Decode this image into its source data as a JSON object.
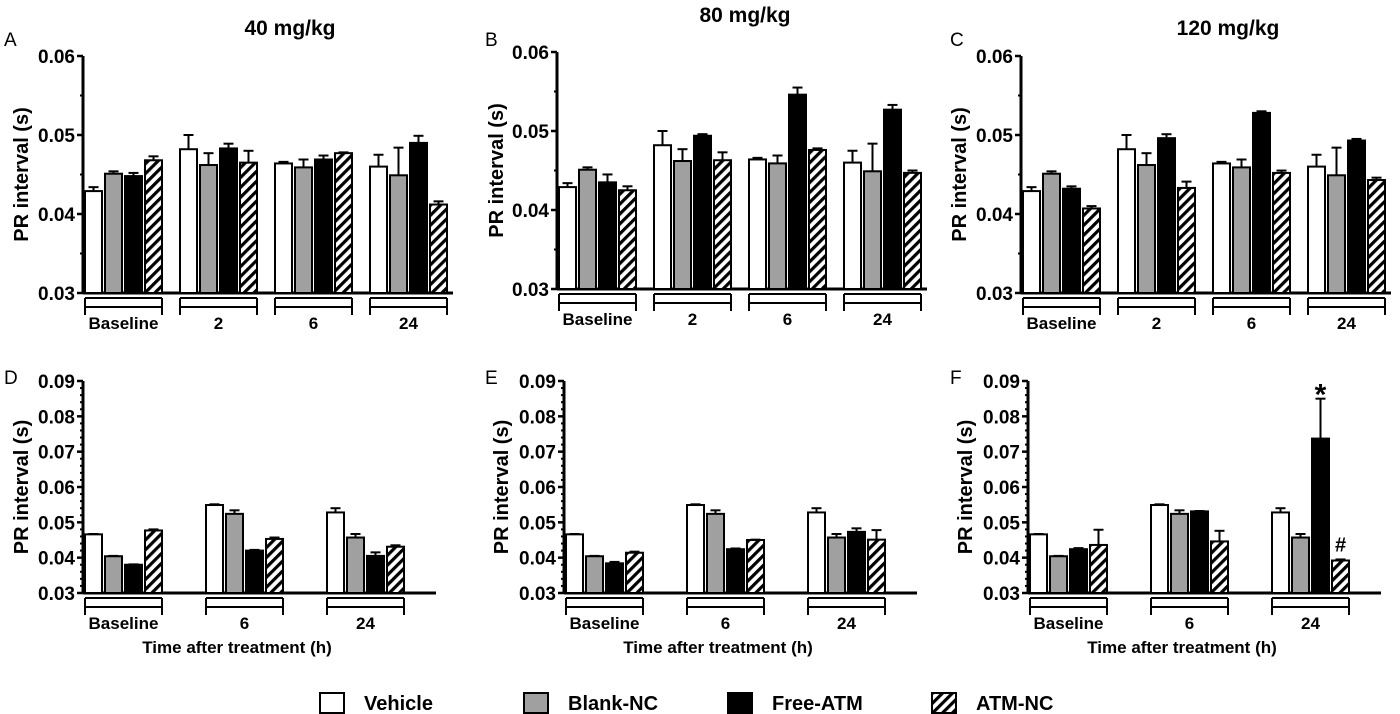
{
  "legend": {
    "items": [
      {
        "label": "Vehicle",
        "fill": "#ffffff"
      },
      {
        "label": "Blank-NC",
        "fill": "#a0a0a0"
      },
      {
        "label": "Free-ATM",
        "fill": "#000000"
      },
      {
        "label": "ATM-NC",
        "fill": "hatched"
      }
    ]
  },
  "chart_data": [
    {
      "panel": "A",
      "title": "40 mg/kg",
      "type": "bar",
      "ylabel": "PR interval (s)",
      "xlabel": "",
      "ylim": [
        0.03,
        0.06
      ],
      "yticks": [
        "0.03",
        "0.04",
        "0.05",
        "0.06"
      ],
      "categories": [
        "Baseline",
        "2",
        "6",
        "24"
      ],
      "series": [
        {
          "name": "Vehicle",
          "values": [
            0.0429,
            0.0482,
            0.0464,
            0.046
          ],
          "errors": [
            0.0005,
            0.0018,
            0.0002,
            0.0015
          ]
        },
        {
          "name": "Blank-NC",
          "values": [
            0.0451,
            0.0462,
            0.0459,
            0.0449
          ],
          "errors": [
            0.0003,
            0.0015,
            0.001,
            0.0035
          ]
        },
        {
          "name": "Free-ATM",
          "values": [
            0.0448,
            0.0483,
            0.0469,
            0.049
          ],
          "errors": [
            0.0004,
            0.0006,
            0.0005,
            0.0009
          ]
        },
        {
          "name": "ATM-NC",
          "values": [
            0.0468,
            0.0465,
            0.0477,
            0.0412
          ],
          "errors": [
            0.0005,
            0.0015,
            0.0001,
            0.0004
          ]
        }
      ],
      "annotations": []
    },
    {
      "panel": "B",
      "title": "80 mg/kg",
      "type": "bar",
      "ylabel": "PR interval (s)",
      "xlabel": "",
      "ylim": [
        0.03,
        0.06
      ],
      "yticks": [
        "0.03",
        "0.04",
        "0.05",
        "0.06"
      ],
      "categories": [
        "Baseline",
        "2",
        "6",
        "24"
      ],
      "series": [
        {
          "name": "Vehicle",
          "values": [
            0.0429,
            0.0482,
            0.0464,
            0.046
          ],
          "errors": [
            0.0005,
            0.0018,
            0.0002,
            0.0015
          ]
        },
        {
          "name": "Blank-NC",
          "values": [
            0.0451,
            0.0462,
            0.0459,
            0.0449
          ],
          "errors": [
            0.0003,
            0.0015,
            0.001,
            0.0035
          ]
        },
        {
          "name": "Free-ATM",
          "values": [
            0.0435,
            0.0494,
            0.0546,
            0.0527
          ],
          "errors": [
            0.001,
            0.0002,
            0.0009,
            0.0006
          ]
        },
        {
          "name": "ATM-NC",
          "values": [
            0.0425,
            0.0463,
            0.0476,
            0.0447
          ],
          "errors": [
            0.0005,
            0.001,
            0.0002,
            0.0003
          ]
        }
      ],
      "annotations": []
    },
    {
      "panel": "C",
      "title": "120 mg/kg",
      "type": "bar",
      "ylabel": "PR interval (s)",
      "xlabel": "",
      "ylim": [
        0.03,
        0.06
      ],
      "yticks": [
        "0.03",
        "0.04",
        "0.05",
        "0.06"
      ],
      "categories": [
        "Baseline",
        "2",
        "6",
        "24"
      ],
      "series": [
        {
          "name": "Vehicle",
          "values": [
            0.0429,
            0.0482,
            0.0464,
            0.046
          ],
          "errors": [
            0.0005,
            0.0018,
            0.0002,
            0.0015
          ]
        },
        {
          "name": "Blank-NC",
          "values": [
            0.0451,
            0.0462,
            0.0459,
            0.0449
          ],
          "errors": [
            0.0003,
            0.0015,
            0.001,
            0.0035
          ]
        },
        {
          "name": "Free-ATM",
          "values": [
            0.0432,
            0.0496,
            0.0528,
            0.0493
          ],
          "errors": [
            0.0003,
            0.0005,
            0.0002,
            0.0002
          ]
        },
        {
          "name": "ATM-NC",
          "values": [
            0.0407,
            0.0433,
            0.0452,
            0.0443
          ],
          "errors": [
            0.0003,
            0.0008,
            0.0003,
            0.0003
          ]
        }
      ],
      "annotations": []
    },
    {
      "panel": "D",
      "title": "",
      "type": "bar",
      "ylabel": "PR interval (s)",
      "xlabel": "Time after treatment (h)",
      "ylim": [
        0.03,
        0.09
      ],
      "yticks": [
        "0.03",
        "0.04",
        "0.05",
        "0.06",
        "0.07",
        "0.08",
        "0.09"
      ],
      "categories": [
        "Baseline",
        "6",
        "24"
      ],
      "series": [
        {
          "name": "Vehicle",
          "values": [
            0.0466,
            0.0549,
            0.0528
          ],
          "errors": [
            0.0001,
            0.0002,
            0.0012
          ]
        },
        {
          "name": "Blank-NC",
          "values": [
            0.0404,
            0.0524,
            0.0457
          ],
          "errors": [
            0.0001,
            0.001,
            0.001
          ]
        },
        {
          "name": "Free-ATM",
          "values": [
            0.038,
            0.042,
            0.0405
          ],
          "errors": [
            0.0001,
            0.0002,
            0.001
          ]
        },
        {
          "name": "ATM-NC",
          "values": [
            0.0477,
            0.0453,
            0.0431
          ],
          "errors": [
            0.0003,
            0.0004,
            0.0004
          ]
        }
      ],
      "annotations": []
    },
    {
      "panel": "E",
      "title": "",
      "type": "bar",
      "ylabel": "PR interval (s)",
      "xlabel": "Time after treatment (h)",
      "ylim": [
        0.03,
        0.09
      ],
      "yticks": [
        "0.03",
        "0.04",
        "0.05",
        "0.06",
        "0.07",
        "0.08",
        "0.09"
      ],
      "categories": [
        "Baseline",
        "6",
        "24"
      ],
      "series": [
        {
          "name": "Vehicle",
          "values": [
            0.0466,
            0.0549,
            0.0528
          ],
          "errors": [
            0.0001,
            0.0002,
            0.0012
          ]
        },
        {
          "name": "Blank-NC",
          "values": [
            0.0404,
            0.0524,
            0.0457
          ],
          "errors": [
            0.0001,
            0.001,
            0.001
          ]
        },
        {
          "name": "Free-ATM",
          "values": [
            0.0384,
            0.0424,
            0.0473
          ],
          "errors": [
            0.0004,
            0.0002,
            0.001
          ]
        },
        {
          "name": "ATM-NC",
          "values": [
            0.0414,
            0.045,
            0.0451
          ],
          "errors": [
            0.0003,
            0.0001,
            0.0027
          ]
        }
      ],
      "annotations": []
    },
    {
      "panel": "F",
      "title": "",
      "type": "bar",
      "ylabel": "PR interval (s)",
      "xlabel": "Time after treatment (h)",
      "ylim": [
        0.03,
        0.09
      ],
      "yticks": [
        "0.03",
        "0.04",
        "0.05",
        "0.06",
        "0.07",
        "0.08",
        "0.09"
      ],
      "categories": [
        "Baseline",
        "6",
        "24"
      ],
      "series": [
        {
          "name": "Vehicle",
          "values": [
            0.0466,
            0.0549,
            0.0528
          ],
          "errors": [
            0.0001,
            0.0002,
            0.0012
          ]
        },
        {
          "name": "Blank-NC",
          "values": [
            0.0404,
            0.0524,
            0.0457
          ],
          "errors": [
            0.0001,
            0.001,
            0.001
          ]
        },
        {
          "name": "Free-ATM",
          "values": [
            0.0424,
            0.0531,
            0.0737
          ],
          "errors": [
            0.0003,
            0.0001,
            0.0113
          ]
        },
        {
          "name": "ATM-NC",
          "values": [
            0.0436,
            0.0446,
            0.0392
          ],
          "errors": [
            0.0043,
            0.003,
            0.0003
          ]
        }
      ],
      "annotations": [
        {
          "text": "*",
          "category": "24",
          "series": "Free-ATM"
        },
        {
          "text": "#",
          "category": "24",
          "series": "ATM-NC"
        }
      ]
    }
  ]
}
